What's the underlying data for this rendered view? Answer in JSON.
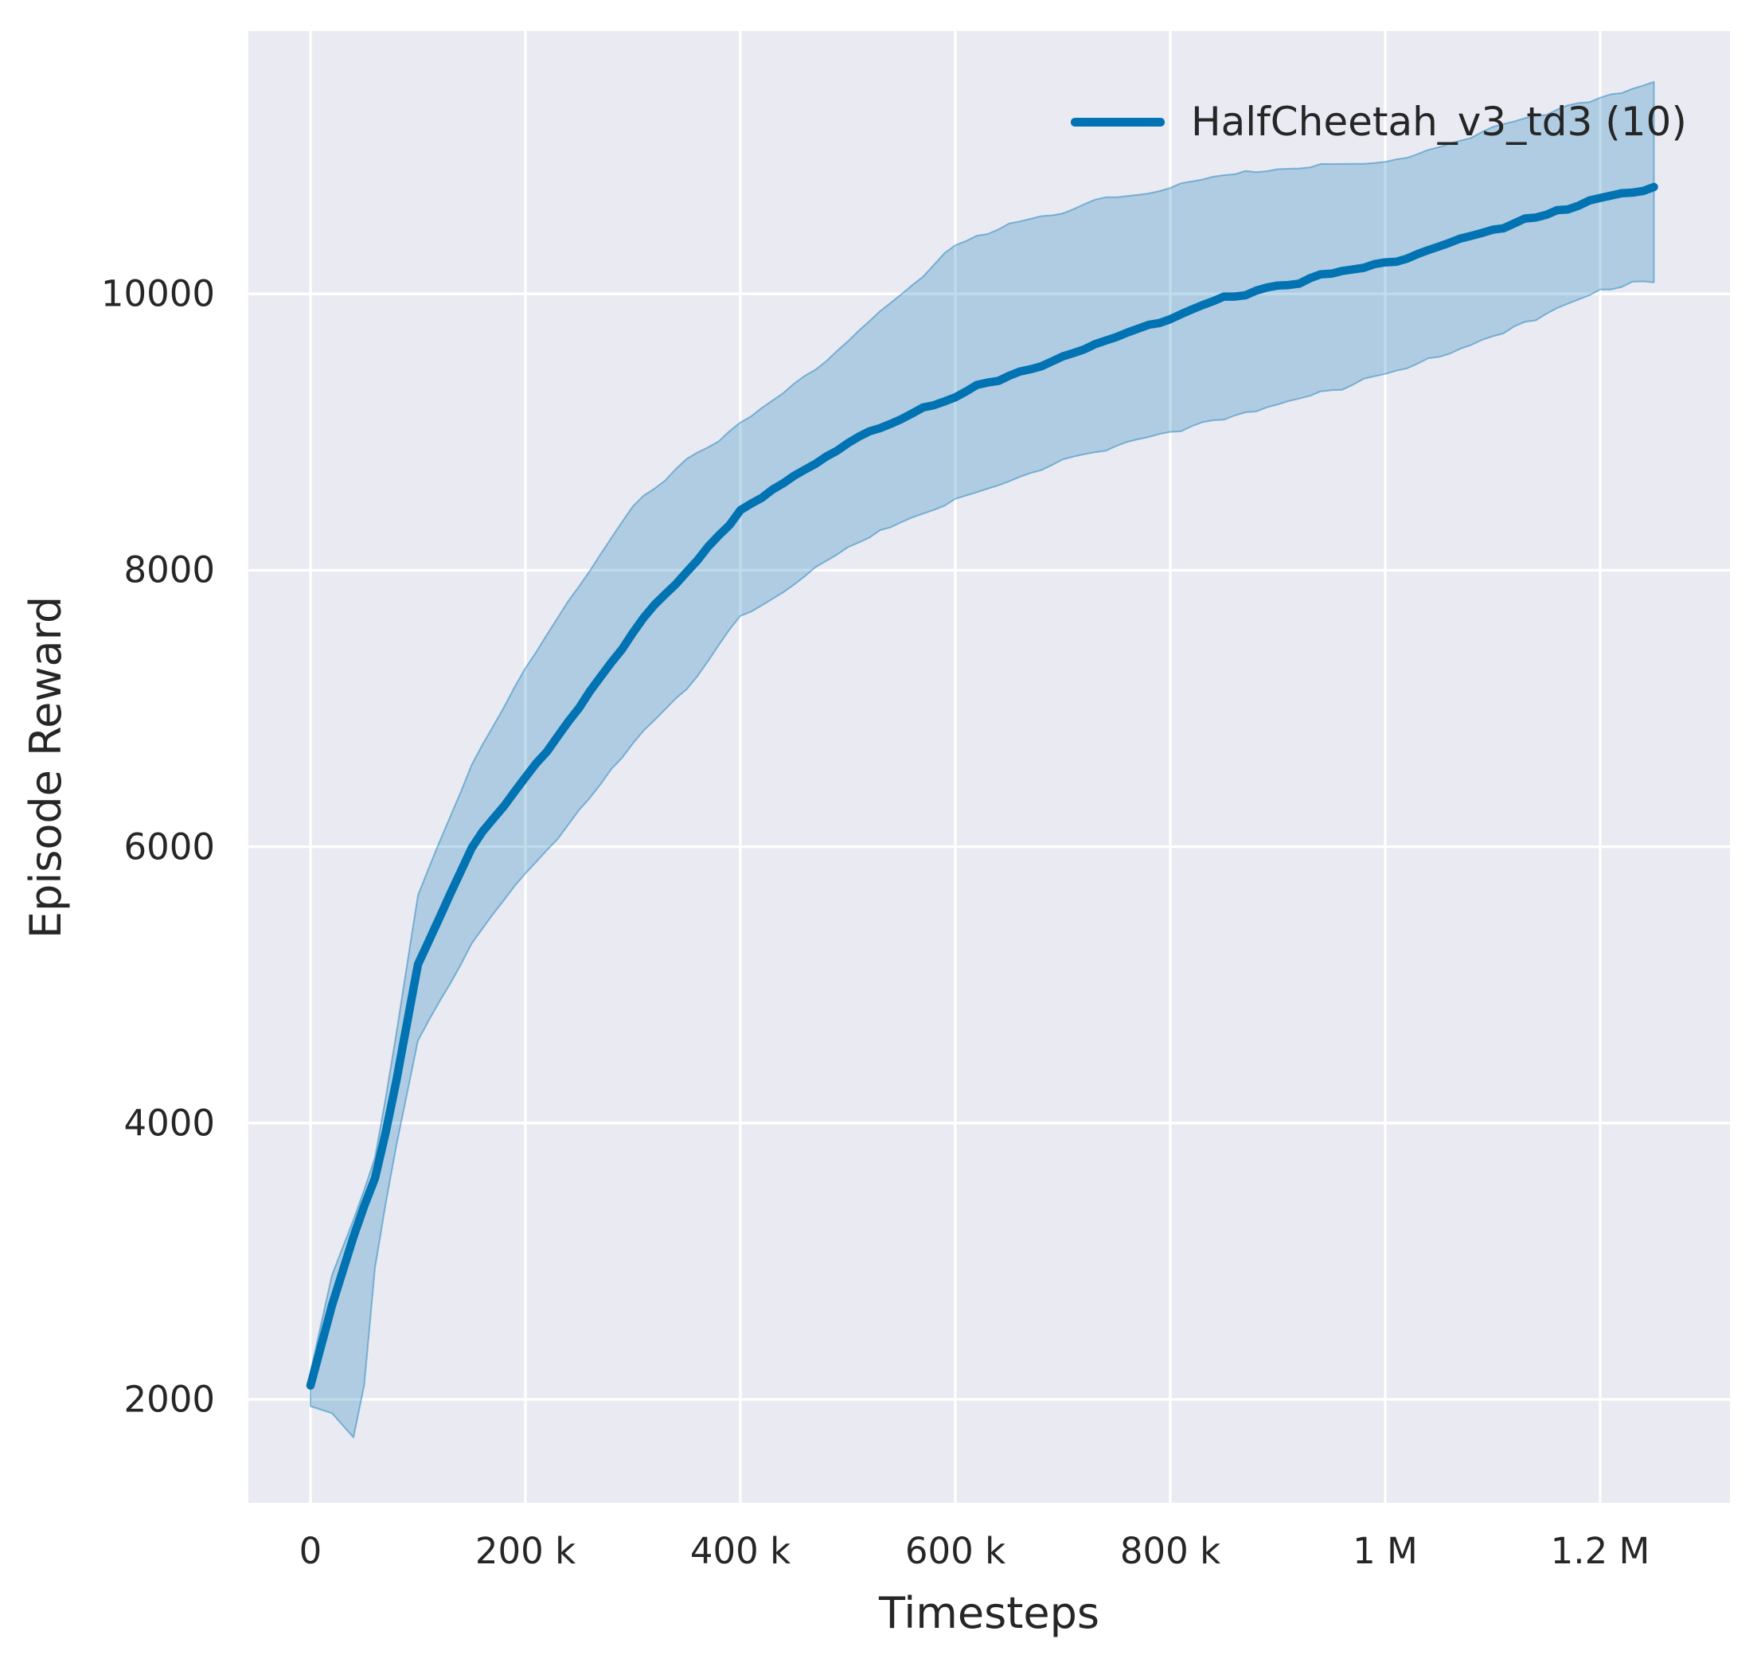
{
  "chart": {
    "xlabel": "Timesteps",
    "ylabel": "Episode Reward",
    "legend": {
      "label": "HalfCheetah_v3_td3 (10)"
    },
    "colors": {
      "line": "#0173b2",
      "band_fill": "rgba(1,115,178,0.25)",
      "band_edge": "rgba(1,115,178,0.42)",
      "axes_bg": "#eaeaf2",
      "grid": "#ffffff",
      "text": "#262626",
      "figure_bg": "#ffffff"
    }
  },
  "chart_data": {
    "type": "line",
    "title": "",
    "xlabel": "Timesteps",
    "ylabel": "Episode Reward",
    "grid": true,
    "legend_position": "upper right",
    "xlim": [
      -57800,
      1321000
    ],
    "ylim": [
      1250,
      11900
    ],
    "x_ticks": [
      {
        "value": 0,
        "label": "0"
      },
      {
        "value": 200000,
        "label": "200 k"
      },
      {
        "value": 400000,
        "label": "400 k"
      },
      {
        "value": 600000,
        "label": "600 k"
      },
      {
        "value": 800000,
        "label": "800 k"
      },
      {
        "value": 1000000,
        "label": "1 M"
      },
      {
        "value": 1200000,
        "label": "1.2 M"
      }
    ],
    "y_ticks": [
      {
        "value": 2000,
        "label": "2000"
      },
      {
        "value": 4000,
        "label": "4000"
      },
      {
        "value": 6000,
        "label": "6000"
      },
      {
        "value": 8000,
        "label": "8000"
      },
      {
        "value": 10000,
        "label": "10000"
      }
    ],
    "series": [
      {
        "name": "HalfCheetah_v3_td3 (10)",
        "color": "#0173b2",
        "x": [
          0,
          20000,
          45000,
          60000,
          75000,
          100000,
          150000,
          200000,
          250000,
          300000,
          350000,
          400000,
          450000,
          500000,
          550000,
          600000,
          650000,
          700000,
          750000,
          800000,
          850000,
          900000,
          950000,
          1000000,
          1050000,
          1100000,
          1150000,
          1200000,
          1250000
        ],
        "mean": [
          2100,
          2680,
          3300,
          3600,
          4100,
          5150,
          6000,
          6500,
          7000,
          7550,
          8000,
          8430,
          8700,
          8930,
          9100,
          9270,
          9400,
          9550,
          9700,
          9830,
          9960,
          10060,
          10150,
          10230,
          10330,
          10470,
          10570,
          10690,
          10780
        ],
        "lower": [
          1950,
          1900,
          1680,
          2950,
          3650,
          4600,
          5300,
          5800,
          6250,
          6750,
          7150,
          7650,
          7900,
          8150,
          8350,
          8500,
          8650,
          8800,
          8900,
          9000,
          9100,
          9200,
          9300,
          9420,
          9550,
          9700,
          9850,
          10010,
          10100
        ],
        "upper": [
          2200,
          2900,
          3400,
          3750,
          4400,
          5650,
          6600,
          7300,
          7900,
          8450,
          8800,
          9060,
          9350,
          9650,
          10000,
          10350,
          10500,
          10600,
          10700,
          10760,
          10850,
          10900,
          10930,
          10960,
          11060,
          11200,
          11310,
          11420,
          11530
        ]
      }
    ]
  }
}
